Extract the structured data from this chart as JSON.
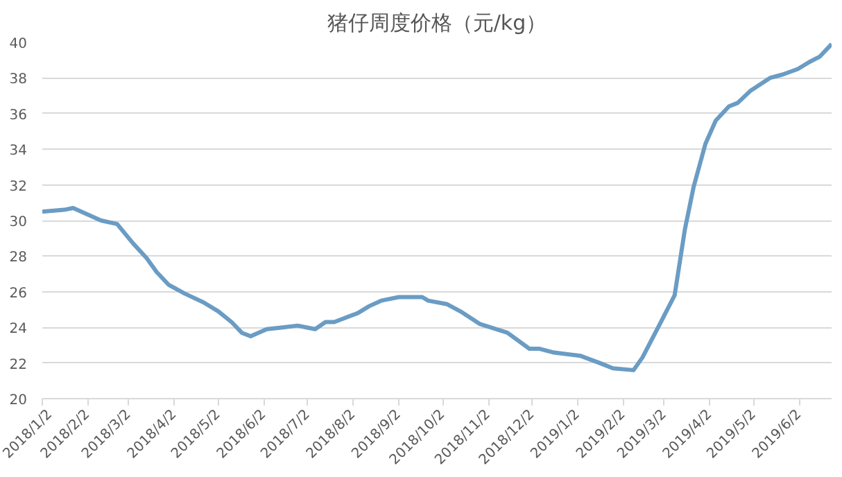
{
  "chart_data": {
    "type": "line",
    "title": "猪仔周度价格（元/kg）",
    "x": [
      "2018-01-02",
      "2018-01-17",
      "2018-01-23",
      "2018-02-11",
      "2018-02-22",
      "2018-03-05",
      "2018-03-14",
      "2018-03-21",
      "2018-03-29",
      "2018-04-09",
      "2018-04-22",
      "2018-05-02",
      "2018-05-11",
      "2018-05-18",
      "2018-05-24",
      "2018-06-04",
      "2018-06-15",
      "2018-06-25",
      "2018-07-01",
      "2018-07-07",
      "2018-07-14",
      "2018-07-20",
      "2018-08-05",
      "2018-08-13",
      "2018-08-21",
      "2018-09-02",
      "2018-09-12",
      "2018-09-18",
      "2018-09-22",
      "2018-10-05",
      "2018-10-14",
      "2018-10-27",
      "2018-11-15",
      "2018-11-30",
      "2018-12-07",
      "2018-12-16",
      "2019-01-04",
      "2019-01-17",
      "2019-01-26",
      "2019-02-09",
      "2019-02-15",
      "2019-02-27",
      "2019-03-09",
      "2019-03-16",
      "2019-03-22",
      "2019-03-30",
      "2019-04-06",
      "2019-04-15",
      "2019-04-21",
      "2019-04-30",
      "2019-05-13",
      "2019-05-22",
      "2019-06-01",
      "2019-06-09",
      "2019-06-16",
      "2019-06-24"
    ],
    "series": [
      {
        "color": "#6a9cc4",
        "values": [
          30.5,
          30.6,
          30.7,
          30.0,
          29.8,
          28.7,
          27.9,
          27.1,
          26.4,
          25.9,
          25.4,
          24.9,
          24.3,
          23.7,
          23.5,
          23.9,
          24.0,
          24.1,
          24.0,
          23.9,
          24.3,
          24.3,
          24.8,
          25.2,
          25.5,
          25.7,
          25.7,
          25.7,
          25.5,
          25.3,
          24.9,
          24.2,
          23.7,
          22.8,
          22.8,
          22.6,
          22.4,
          22.0,
          21.7,
          21.6,
          22.3,
          24.2,
          25.8,
          29.5,
          31.9,
          34.3,
          35.6,
          36.4,
          36.6,
          37.3,
          38.0,
          38.2,
          38.5,
          38.9,
          39.2,
          39.9
        ]
      }
    ],
    "xlim": [
      "2018-01-02",
      "2019-06-24"
    ],
    "xticks": [
      {
        "value": "2018-01-02",
        "label": "2018/1/2"
      },
      {
        "value": "2018-02-02",
        "label": "2018/2/2"
      },
      {
        "value": "2018-03-02",
        "label": "2018/3/2"
      },
      {
        "value": "2018-04-02",
        "label": "2018/4/2"
      },
      {
        "value": "2018-05-02",
        "label": "2018/5/2"
      },
      {
        "value": "2018-06-02",
        "label": "2018/6/2"
      },
      {
        "value": "2018-07-02",
        "label": "2018/7/2"
      },
      {
        "value": "2018-08-02",
        "label": "2018/8/2"
      },
      {
        "value": "2018-09-02",
        "label": "2018/9/2"
      },
      {
        "value": "2018-10-02",
        "label": "2018/10/2"
      },
      {
        "value": "2018-11-02",
        "label": "2018/11/2"
      },
      {
        "value": "2018-12-02",
        "label": "2018/12/2"
      },
      {
        "value": "2019-01-02",
        "label": "2019/1/2"
      },
      {
        "value": "2019-02-02",
        "label": "2019/2/2"
      },
      {
        "value": "2019-03-02",
        "label": "2019/3/2"
      },
      {
        "value": "2019-04-02",
        "label": "2019/4/2"
      },
      {
        "value": "2019-05-02",
        "label": "2019/5/2"
      },
      {
        "value": "2019-06-02",
        "label": "2019/6/2"
      }
    ],
    "ylim": [
      20,
      40
    ],
    "yticks": [
      20,
      22,
      24,
      26,
      28,
      30,
      32,
      34,
      36,
      38,
      40
    ],
    "grid": "y",
    "marker": "none",
    "line_style": "solid"
  }
}
